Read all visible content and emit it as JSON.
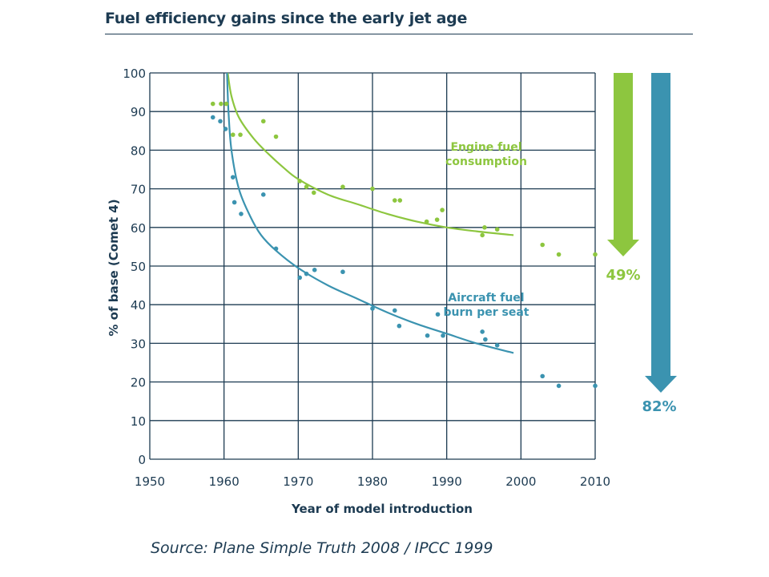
{
  "title": "Fuel efficiency gains since the early jet age",
  "source": "Source: Plane Simple Truth 2008 / IPCC 1999",
  "colors": {
    "engine": "#8dc63f",
    "aircraft": "#3b93b0",
    "grid": "#1d3b52",
    "text": "#1d3b52"
  },
  "chart_data": {
    "type": "scatter",
    "xlabel": "Year of model introduction",
    "ylabel": "% of base (Comet 4)",
    "xlim": [
      1950,
      2010
    ],
    "ylim": [
      0,
      100
    ],
    "xticks": [
      "1950",
      "1960",
      "1970",
      "1980",
      "1990",
      "2000",
      "2010"
    ],
    "yticks": [
      "0",
      "10",
      "20",
      "30",
      "40",
      "50",
      "60",
      "70",
      "80",
      "90",
      "100"
    ],
    "grid": true,
    "series": [
      {
        "name": "Engine fuel consumption",
        "label_lines": [
          "Engine fuel",
          "consumption"
        ],
        "color": "#8dc63f",
        "points": [
          [
            1958.5,
            92
          ],
          [
            1959.6,
            92
          ],
          [
            1960.3,
            92
          ],
          [
            1961.2,
            84
          ],
          [
            1962.2,
            84
          ],
          [
            1965.3,
            87.5
          ],
          [
            1967,
            83.5
          ],
          [
            1970.2,
            72
          ],
          [
            1971.1,
            70.5
          ],
          [
            1972.1,
            69
          ],
          [
            1976,
            70.5
          ],
          [
            1980,
            70
          ],
          [
            1983,
            67
          ],
          [
            1983.7,
            67
          ],
          [
            1987.3,
            61.5
          ],
          [
            1988.7,
            62
          ],
          [
            1989.4,
            64.5
          ],
          [
            1994.8,
            58
          ],
          [
            1995.1,
            60
          ],
          [
            1996.8,
            59.5
          ],
          [
            2002.9,
            55.5
          ],
          [
            2005.1,
            53
          ],
          [
            2010,
            53
          ]
        ],
        "trend": [
          [
            1960.5,
            100
          ],
          [
            1961,
            94
          ],
          [
            1962,
            88.5
          ],
          [
            1964,
            83
          ],
          [
            1966,
            79
          ],
          [
            1968,
            75.5
          ],
          [
            1970,
            72.5
          ],
          [
            1974,
            68.5
          ],
          [
            1978,
            66
          ],
          [
            1982,
            63.5
          ],
          [
            1986,
            61.5
          ],
          [
            1990,
            60
          ],
          [
            1994,
            59
          ],
          [
            1999,
            58
          ]
        ]
      },
      {
        "name": "Aircraft fuel burn per seat",
        "label_lines": [
          "Aircraft fuel",
          "burn per seat"
        ],
        "color": "#3b93b0",
        "points": [
          [
            1958.5,
            88.5
          ],
          [
            1959.5,
            87.5
          ],
          [
            1960.2,
            85.5
          ],
          [
            1961.2,
            73
          ],
          [
            1961.4,
            66.5
          ],
          [
            1962.3,
            63.5
          ],
          [
            1965.3,
            68.5
          ],
          [
            1967,
            54.5
          ],
          [
            1970.2,
            47
          ],
          [
            1971.1,
            48
          ],
          [
            1972.2,
            49
          ],
          [
            1976,
            48.5
          ],
          [
            1980,
            39
          ],
          [
            1983,
            38.5
          ],
          [
            1983.6,
            34.5
          ],
          [
            1987.4,
            32
          ],
          [
            1988.8,
            37.5
          ],
          [
            1989.5,
            32
          ],
          [
            1994.8,
            33
          ],
          [
            1995.2,
            31
          ],
          [
            1996.8,
            29.5
          ],
          [
            2002.9,
            21.5
          ],
          [
            2005.1,
            19
          ],
          [
            2010,
            19
          ]
        ],
        "trend": [
          [
            1960.4,
            100
          ],
          [
            1960.6,
            90
          ],
          [
            1961,
            80
          ],
          [
            1962,
            70
          ],
          [
            1963.5,
            63
          ],
          [
            1965,
            58
          ],
          [
            1967,
            54
          ],
          [
            1970,
            49.5
          ],
          [
            1974,
            45
          ],
          [
            1978,
            41.5
          ],
          [
            1982,
            38
          ],
          [
            1986,
            35
          ],
          [
            1990,
            32.5
          ],
          [
            1994,
            30
          ],
          [
            1999,
            27.5
          ]
        ]
      }
    ],
    "annotations": [
      {
        "text": "49%",
        "color": "#8dc63f"
      },
      {
        "text": "82%",
        "color": "#3b93b0"
      }
    ]
  }
}
